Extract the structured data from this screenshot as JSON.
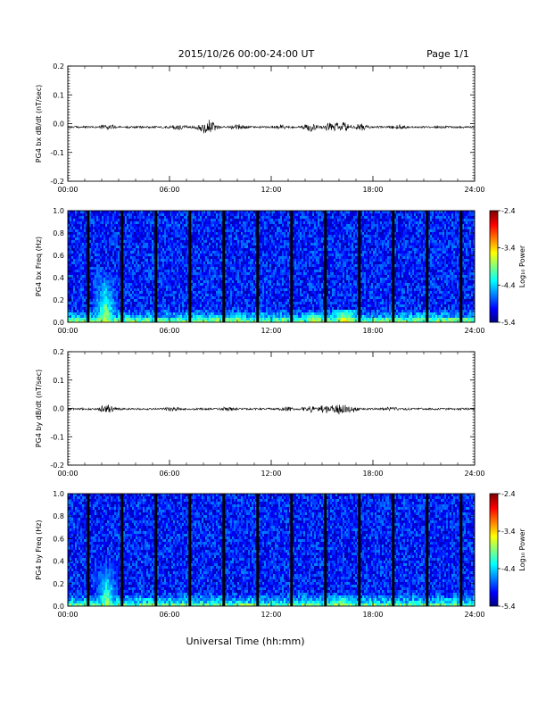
{
  "header": {
    "title": "2015/10/26  00:00-24:00 UT",
    "page": "Page 1/1"
  },
  "xlabel": "Universal Time (hh:mm)",
  "chart_data": [
    {
      "type": "line",
      "ylabel": "PG4 bx dB/dt (nT/sec)",
      "xlim": [
        0,
        24
      ],
      "ylim": [
        -0.2,
        0.2
      ],
      "yticks": [
        "0.2",
        "0.1",
        "0.0",
        "-0.1",
        "-0.2"
      ],
      "xticks": [
        "00:00",
        "06:00",
        "12:00",
        "18:00",
        "24:00"
      ],
      "baseline": -0.012,
      "activity": [
        {
          "t": 2.4,
          "amp": 0.008
        },
        {
          "t": 6.5,
          "amp": 0.01
        },
        {
          "t": 8.0,
          "amp": 0.012
        },
        {
          "t": 8.4,
          "amp": 0.02
        },
        {
          "t": 10.0,
          "amp": 0.008
        },
        {
          "t": 12.5,
          "amp": 0.008
        },
        {
          "t": 14.3,
          "amp": 0.012
        },
        {
          "t": 15.5,
          "amp": 0.014
        },
        {
          "t": 16.2,
          "amp": 0.016
        },
        {
          "t": 17.3,
          "amp": 0.01
        },
        {
          "t": 19.5,
          "amp": 0.006
        }
      ]
    },
    {
      "type": "heatmap",
      "ylabel": "PG4 bx Freq (Hz)",
      "xlim": [
        0,
        24
      ],
      "ylim": [
        0,
        1.0
      ],
      "yticks": [
        "1.0",
        "0.8",
        "0.6",
        "0.4",
        "0.2",
        "0.0"
      ],
      "xticks": [
        "00:00",
        "06:00",
        "12:00",
        "18:00",
        "24:00"
      ],
      "colorbar": {
        "label": "Log₁₀ Power",
        "ticks": [
          "-2.4",
          "-3.4",
          "-4.4",
          "-5.4"
        ],
        "range": [
          -5.4,
          -2.4
        ]
      },
      "data_gaps_hours": [
        1.2,
        3.2,
        5.2,
        7.2,
        9.2,
        11.2,
        13.2,
        15.2,
        17.2,
        19.2,
        21.2,
        23.2
      ],
      "enhancements": [
        {
          "t": 2.2,
          "fmax": 0.45,
          "level": -3.6
        },
        {
          "t": 7.8,
          "fmax": 0.12,
          "level": -3.8
        },
        {
          "t": 10.0,
          "fmax": 0.1,
          "level": -3.6
        },
        {
          "t": 14.5,
          "fmax": 0.1,
          "level": -3.4
        },
        {
          "t": 16.3,
          "fmax": 0.12,
          "level": -3.2
        }
      ]
    },
    {
      "type": "line",
      "ylabel": "PG4 by dB/dt (nT/sec)",
      "xlim": [
        0,
        24
      ],
      "ylim": [
        -0.2,
        0.2
      ],
      "yticks": [
        "0.2",
        "0.1",
        "0.0",
        "-0.1",
        "-0.2"
      ],
      "xticks": [
        "00:00",
        "06:00",
        "12:00",
        "18:00",
        "24:00"
      ],
      "baseline": -0.002,
      "activity": [
        {
          "t": 2.3,
          "amp": 0.014
        },
        {
          "t": 6.2,
          "amp": 0.006
        },
        {
          "t": 9.5,
          "amp": 0.006
        },
        {
          "t": 13.0,
          "amp": 0.006
        },
        {
          "t": 14.3,
          "amp": 0.01
        },
        {
          "t": 15.2,
          "amp": 0.014
        },
        {
          "t": 16.0,
          "amp": 0.016
        },
        {
          "t": 16.7,
          "amp": 0.012
        },
        {
          "t": 19.0,
          "amp": 0.005
        }
      ]
    },
    {
      "type": "heatmap",
      "ylabel": "PG4 by Freq (Hz)",
      "xlim": [
        0,
        24
      ],
      "ylim": [
        0,
        1.0
      ],
      "yticks": [
        "1.0",
        "0.8",
        "0.6",
        "0.4",
        "0.2",
        "0.0"
      ],
      "xticks": [
        "00:00",
        "06:00",
        "12:00",
        "18:00",
        "24:00"
      ],
      "colorbar": {
        "label": "Log₁₀ Power",
        "ticks": [
          "-2.4",
          "-3.4",
          "-4.4",
          "-5.4"
        ],
        "range": [
          -5.4,
          -2.4
        ]
      },
      "data_gaps_hours": [
        1.2,
        3.2,
        5.2,
        7.2,
        9.2,
        11.2,
        13.2,
        15.2,
        17.2,
        19.2,
        21.2,
        23.2
      ],
      "enhancements": [
        {
          "t": 2.3,
          "fmax": 0.4,
          "level": -3.7
        },
        {
          "t": 7.5,
          "fmax": 0.1,
          "level": -3.9
        },
        {
          "t": 14.5,
          "fmax": 0.08,
          "level": -3.6
        },
        {
          "t": 16.2,
          "fmax": 0.1,
          "level": -3.4
        }
      ]
    }
  ]
}
